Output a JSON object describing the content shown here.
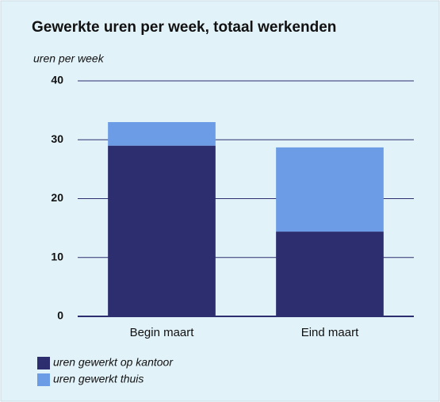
{
  "chart_data": {
    "type": "bar",
    "stacked": true,
    "title": "Gewerkte uren per week, totaal werkenden",
    "y_label": "uren per week",
    "categories": [
      "Begin maart",
      "Eind maart"
    ],
    "series": [
      {
        "name": "uren gewerkt op kantoor",
        "color": "#2c2e6f",
        "values": [
          29,
          14.4
        ]
      },
      {
        "name": "uren gewerkt thuis",
        "color": "#6c9ce6",
        "values": [
          4,
          14.3
        ]
      }
    ],
    "ylim": [
      0,
      40
    ],
    "yticks": [
      0,
      10,
      20,
      30,
      40
    ],
    "grid": true
  }
}
